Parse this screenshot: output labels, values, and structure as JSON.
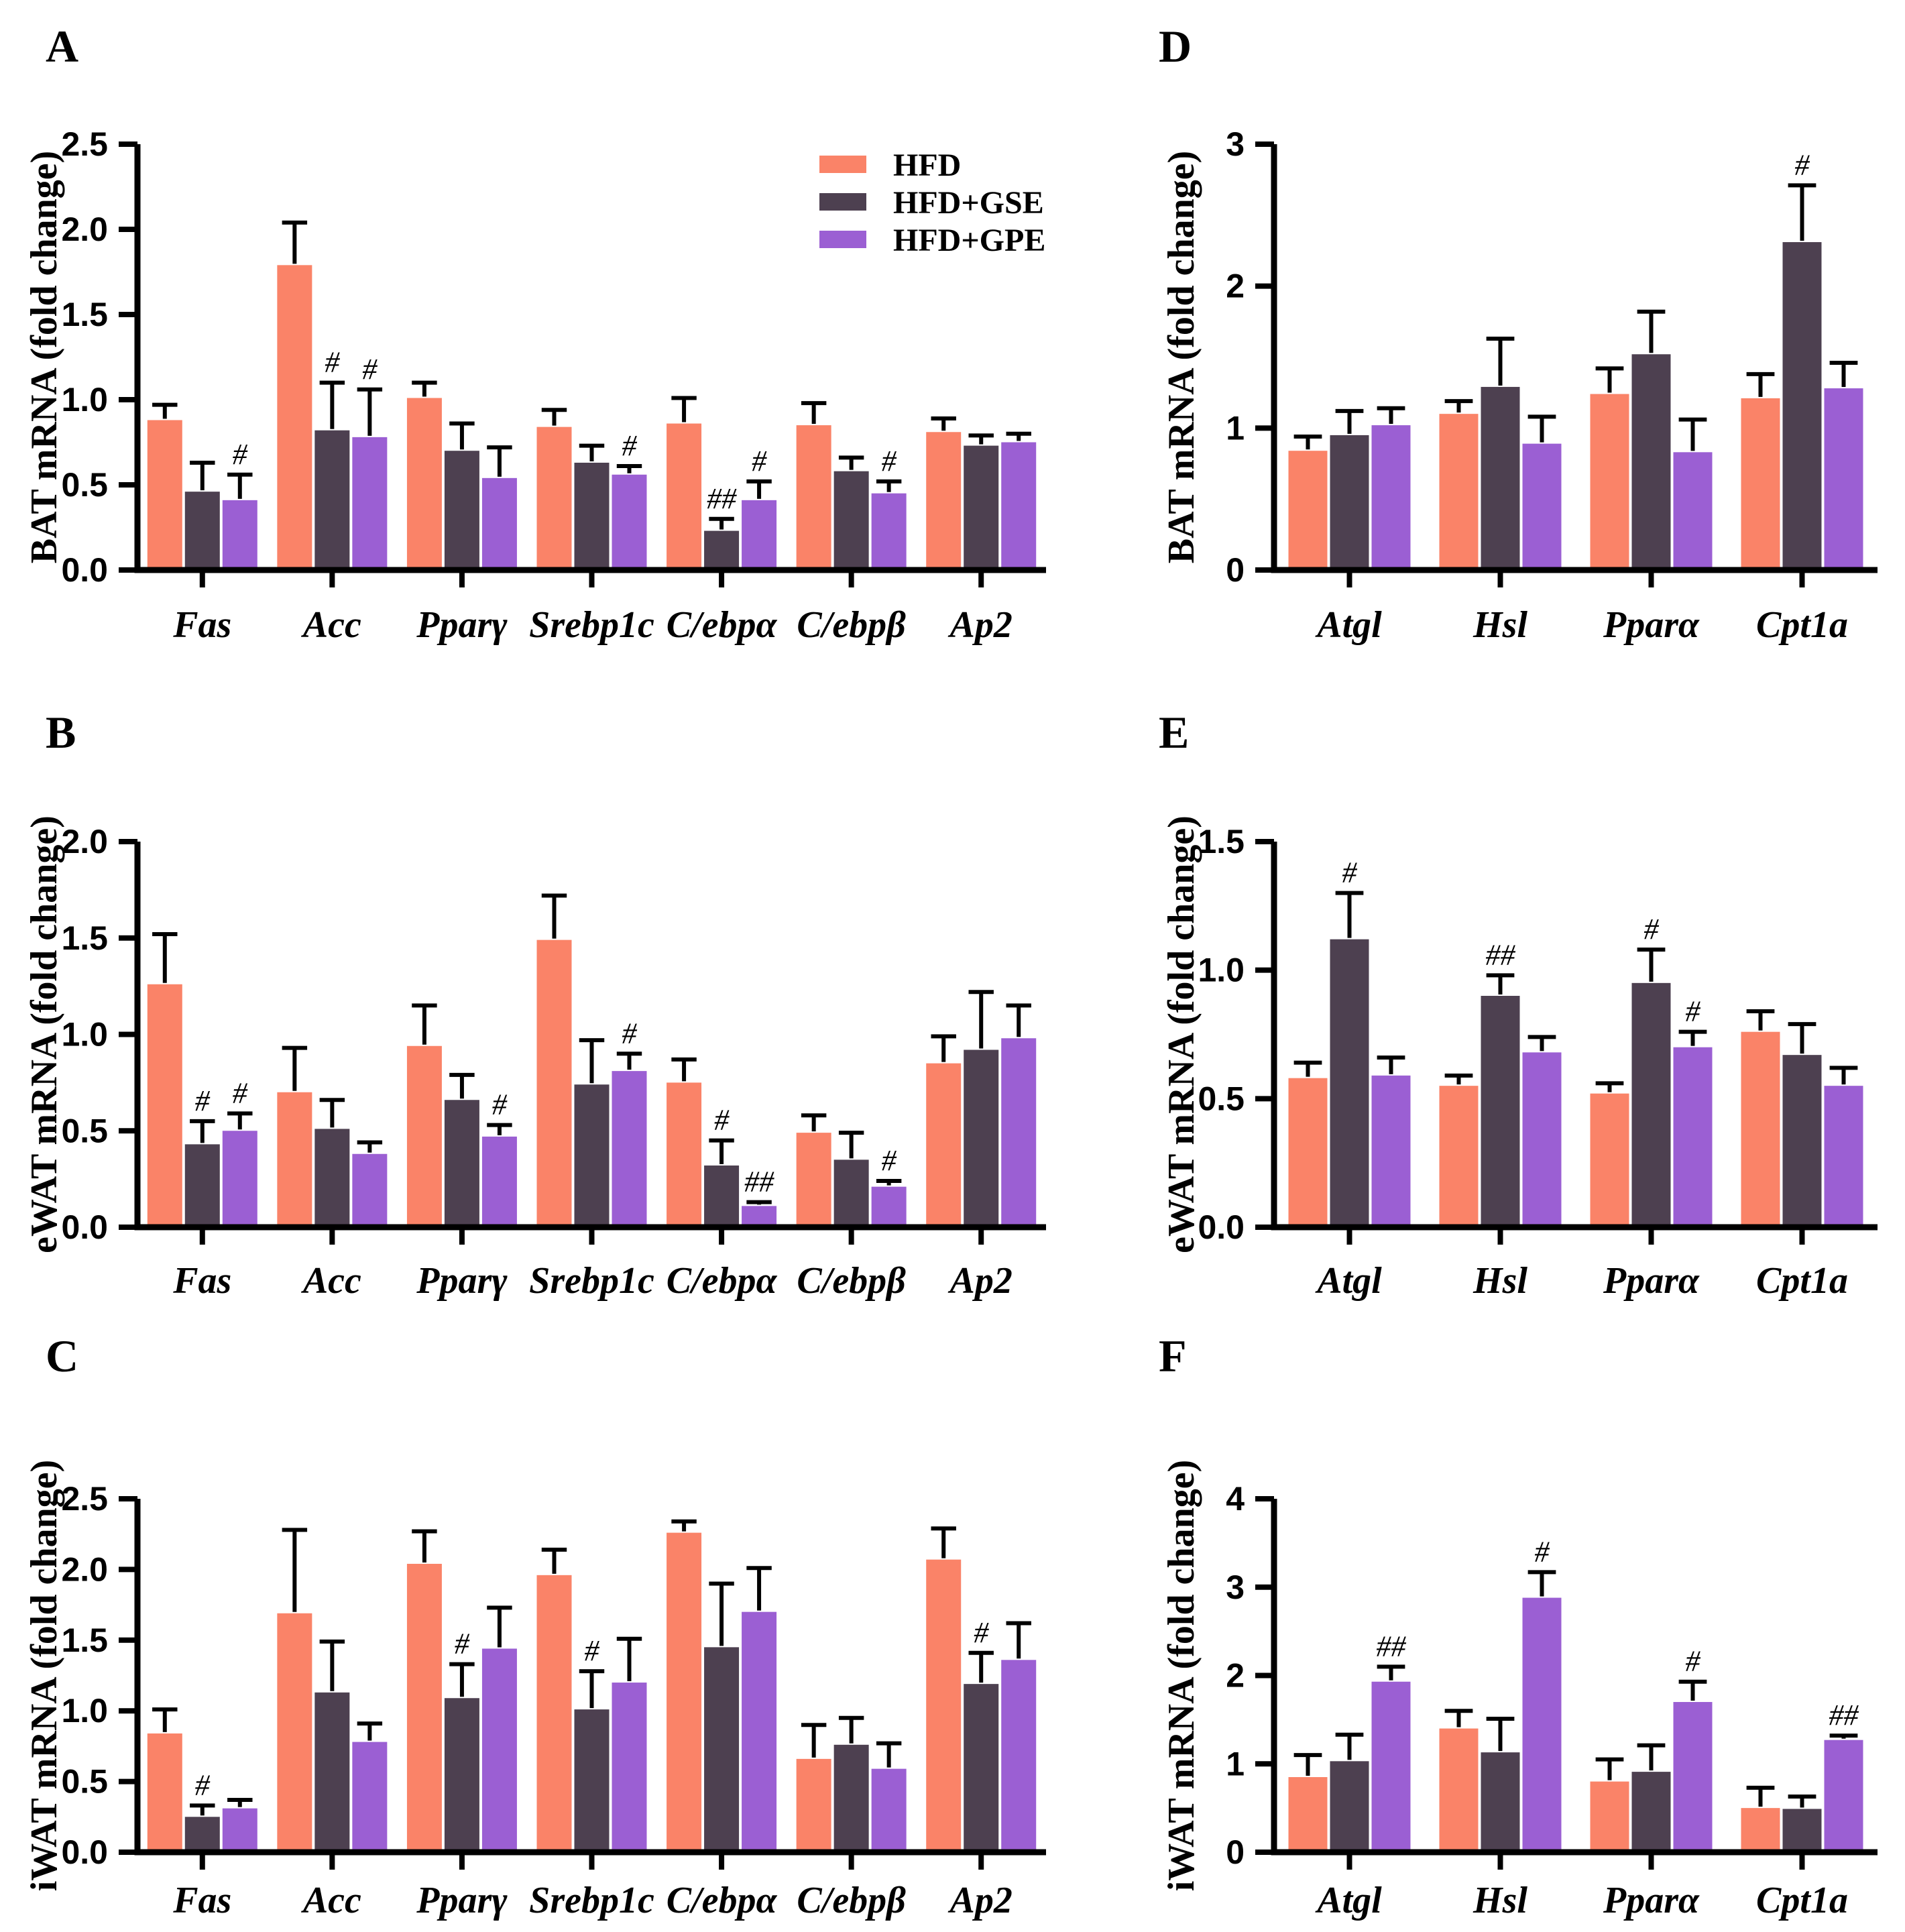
{
  "figure": {
    "background": "#FFFFFF",
    "axis_color": "#000000"
  },
  "legend": {
    "items": [
      {
        "label": "HFD",
        "color": "#FA8368"
      },
      {
        "label": "HFD+GSE",
        "color": "#4D4050"
      },
      {
        "label": "HFD+GPE",
        "color": "#9B5FD3"
      }
    ]
  },
  "chart_data": [
    {
      "panel": "A",
      "type": "bar",
      "show_legend": true,
      "ylabel": "BAT mRNA (fold change)",
      "ylim": [
        0,
        2.5
      ],
      "yticks": [
        "0.0",
        "0.5",
        "1.0",
        "1.5",
        "2.0",
        "2.5"
      ],
      "categories": [
        "Fas",
        "Acc",
        "Pparγ",
        "Srebp1c",
        "C/ebpα",
        "C/ebpβ",
        "Ap2"
      ],
      "series": [
        {
          "name": "HFD",
          "values": [
            0.88,
            1.79,
            1.01,
            0.84,
            0.86,
            0.85,
            0.81
          ],
          "errors": [
            0.09,
            0.25,
            0.09,
            0.1,
            0.15,
            0.13,
            0.08
          ],
          "sig": [
            "",
            "",
            "",
            "",
            "",
            "",
            ""
          ]
        },
        {
          "name": "HFD+GSE",
          "values": [
            0.46,
            0.82,
            0.7,
            0.63,
            0.23,
            0.58,
            0.73
          ],
          "errors": [
            0.17,
            0.28,
            0.16,
            0.1,
            0.07,
            0.08,
            0.06
          ],
          "sig": [
            "",
            "#",
            "",
            "",
            "##",
            "",
            ""
          ]
        },
        {
          "name": "HFD+GPE",
          "values": [
            0.41,
            0.78,
            0.54,
            0.56,
            0.41,
            0.45,
            0.75
          ],
          "errors": [
            0.15,
            0.28,
            0.18,
            0.05,
            0.11,
            0.07,
            0.05
          ],
          "sig": [
            "#",
            "#",
            "",
            "#",
            "#",
            "#",
            ""
          ]
        }
      ]
    },
    {
      "panel": "B",
      "type": "bar",
      "show_legend": false,
      "ylabel": "eWAT mRNA (fold change)",
      "ylim": [
        0,
        2.0
      ],
      "yticks": [
        "0.0",
        "0.5",
        "1.0",
        "1.5",
        "2.0"
      ],
      "categories": [
        "Fas",
        "Acc",
        "Pparγ",
        "Srebp1c",
        "C/ebpα",
        "C/ebpβ",
        "Ap2"
      ],
      "series": [
        {
          "name": "HFD",
          "values": [
            1.26,
            0.7,
            0.94,
            1.49,
            0.75,
            0.49,
            0.85
          ],
          "errors": [
            0.26,
            0.23,
            0.21,
            0.23,
            0.12,
            0.09,
            0.14
          ],
          "sig": [
            "",
            "",
            "",
            "",
            "",
            "",
            ""
          ]
        },
        {
          "name": "HFD+GSE",
          "values": [
            0.43,
            0.51,
            0.66,
            0.74,
            0.32,
            0.35,
            0.92
          ],
          "errors": [
            0.12,
            0.15,
            0.13,
            0.23,
            0.13,
            0.14,
            0.3
          ],
          "sig": [
            "#",
            "",
            "",
            "",
            "#",
            "",
            ""
          ]
        },
        {
          "name": "HFD+GPE",
          "values": [
            0.5,
            0.38,
            0.47,
            0.81,
            0.11,
            0.21,
            0.98
          ],
          "errors": [
            0.09,
            0.06,
            0.06,
            0.09,
            0.02,
            0.03,
            0.17
          ],
          "sig": [
            "#",
            "",
            "#",
            "#",
            "##",
            "#",
            ""
          ]
        }
      ]
    },
    {
      "panel": "C",
      "type": "bar",
      "show_legend": false,
      "ylabel": "iWAT mRNA (fold change)",
      "ylim": [
        0,
        2.5
      ],
      "yticks": [
        "0.0",
        "0.5",
        "1.0",
        "1.5",
        "2.0",
        "2.5"
      ],
      "categories": [
        "Fas",
        "Acc",
        "Pparγ",
        "Srebp1c",
        "C/ebpα",
        "C/ebpβ",
        "Ap2"
      ],
      "series": [
        {
          "name": "HFD",
          "values": [
            0.84,
            1.69,
            2.04,
            1.96,
            2.26,
            0.66,
            2.07
          ],
          "errors": [
            0.17,
            0.59,
            0.23,
            0.18,
            0.08,
            0.24,
            0.22
          ],
          "sig": [
            "",
            "",
            "",
            "",
            "",
            "",
            ""
          ]
        },
        {
          "name": "HFD+GSE",
          "values": [
            0.25,
            1.13,
            1.09,
            1.01,
            1.45,
            0.76,
            1.19
          ],
          "errors": [
            0.08,
            0.36,
            0.24,
            0.27,
            0.45,
            0.19,
            0.22
          ],
          "sig": [
            "#",
            "",
            "#",
            "#",
            "",
            "",
            "#"
          ]
        },
        {
          "name": "HFD+GPE",
          "values": [
            0.31,
            0.78,
            1.44,
            1.2,
            1.7,
            0.59,
            1.36
          ],
          "errors": [
            0.06,
            0.13,
            0.29,
            0.31,
            0.31,
            0.18,
            0.26
          ],
          "sig": [
            "",
            "",
            "",
            "",
            "",
            "",
            ""
          ]
        }
      ]
    },
    {
      "panel": "D",
      "type": "bar",
      "show_legend": false,
      "ylabel": "BAT mRNA (fold change)",
      "ylim": [
        0,
        3
      ],
      "yticks": [
        "0",
        "1",
        "2",
        "3"
      ],
      "categories": [
        "Atgl",
        "Hsl",
        "Pparα",
        "Cpt1a"
      ],
      "series": [
        {
          "name": "HFD",
          "values": [
            0.84,
            1.1,
            1.24,
            1.21
          ],
          "errors": [
            0.1,
            0.09,
            0.18,
            0.17
          ],
          "sig": [
            "",
            "",
            "",
            ""
          ]
        },
        {
          "name": "HFD+GSE",
          "values": [
            0.95,
            1.29,
            1.52,
            2.31
          ],
          "errors": [
            0.17,
            0.34,
            0.3,
            0.4
          ],
          "sig": [
            "",
            "",
            "",
            "#"
          ]
        },
        {
          "name": "HFD+GPE",
          "values": [
            1.02,
            0.89,
            0.83,
            1.28
          ],
          "errors": [
            0.12,
            0.19,
            0.23,
            0.18
          ],
          "sig": [
            "",
            "",
            "",
            ""
          ]
        }
      ]
    },
    {
      "panel": "E",
      "type": "bar",
      "show_legend": false,
      "ylabel": "eWAT mRNA (fold change)",
      "ylim": [
        0,
        1.5
      ],
      "yticks": [
        "0.0",
        "0.5",
        "1.0",
        "1.5"
      ],
      "categories": [
        "Atgl",
        "Hsl",
        "Pparα",
        "Cpt1a"
      ],
      "series": [
        {
          "name": "HFD",
          "values": [
            0.58,
            0.55,
            0.52,
            0.76
          ],
          "errors": [
            0.06,
            0.04,
            0.04,
            0.08
          ],
          "sig": [
            "",
            "",
            "",
            ""
          ]
        },
        {
          "name": "HFD+GSE",
          "values": [
            1.12,
            0.9,
            0.95,
            0.67
          ],
          "errors": [
            0.18,
            0.08,
            0.13,
            0.12
          ],
          "sig": [
            "#",
            "##",
            "#",
            ""
          ]
        },
        {
          "name": "HFD+GPE",
          "values": [
            0.59,
            0.68,
            0.7,
            0.55
          ],
          "errors": [
            0.07,
            0.06,
            0.06,
            0.07
          ],
          "sig": [
            "",
            "",
            "#",
            ""
          ]
        }
      ]
    },
    {
      "panel": "F",
      "type": "bar",
      "show_legend": false,
      "ylabel": "iWAT mRNA (fold change)",
      "ylim": [
        0,
        4
      ],
      "yticks": [
        "0",
        "1",
        "2",
        "3",
        "4"
      ],
      "categories": [
        "Atgl",
        "Hsl",
        "Pparα",
        "Cpt1a"
      ],
      "series": [
        {
          "name": "HFD",
          "values": [
            0.85,
            1.4,
            0.8,
            0.5
          ],
          "errors": [
            0.25,
            0.2,
            0.25,
            0.23
          ],
          "sig": [
            "",
            "",
            "",
            ""
          ]
        },
        {
          "name": "HFD+GSE",
          "values": [
            1.03,
            1.13,
            0.91,
            0.49
          ],
          "errors": [
            0.3,
            0.38,
            0.3,
            0.14
          ],
          "sig": [
            "",
            "",
            "",
            ""
          ]
        },
        {
          "name": "HFD+GPE",
          "values": [
            1.93,
            2.88,
            1.7,
            1.27
          ],
          "errors": [
            0.17,
            0.29,
            0.23,
            0.05
          ],
          "sig": [
            "##",
            "#",
            "#",
            "##"
          ]
        }
      ]
    }
  ]
}
